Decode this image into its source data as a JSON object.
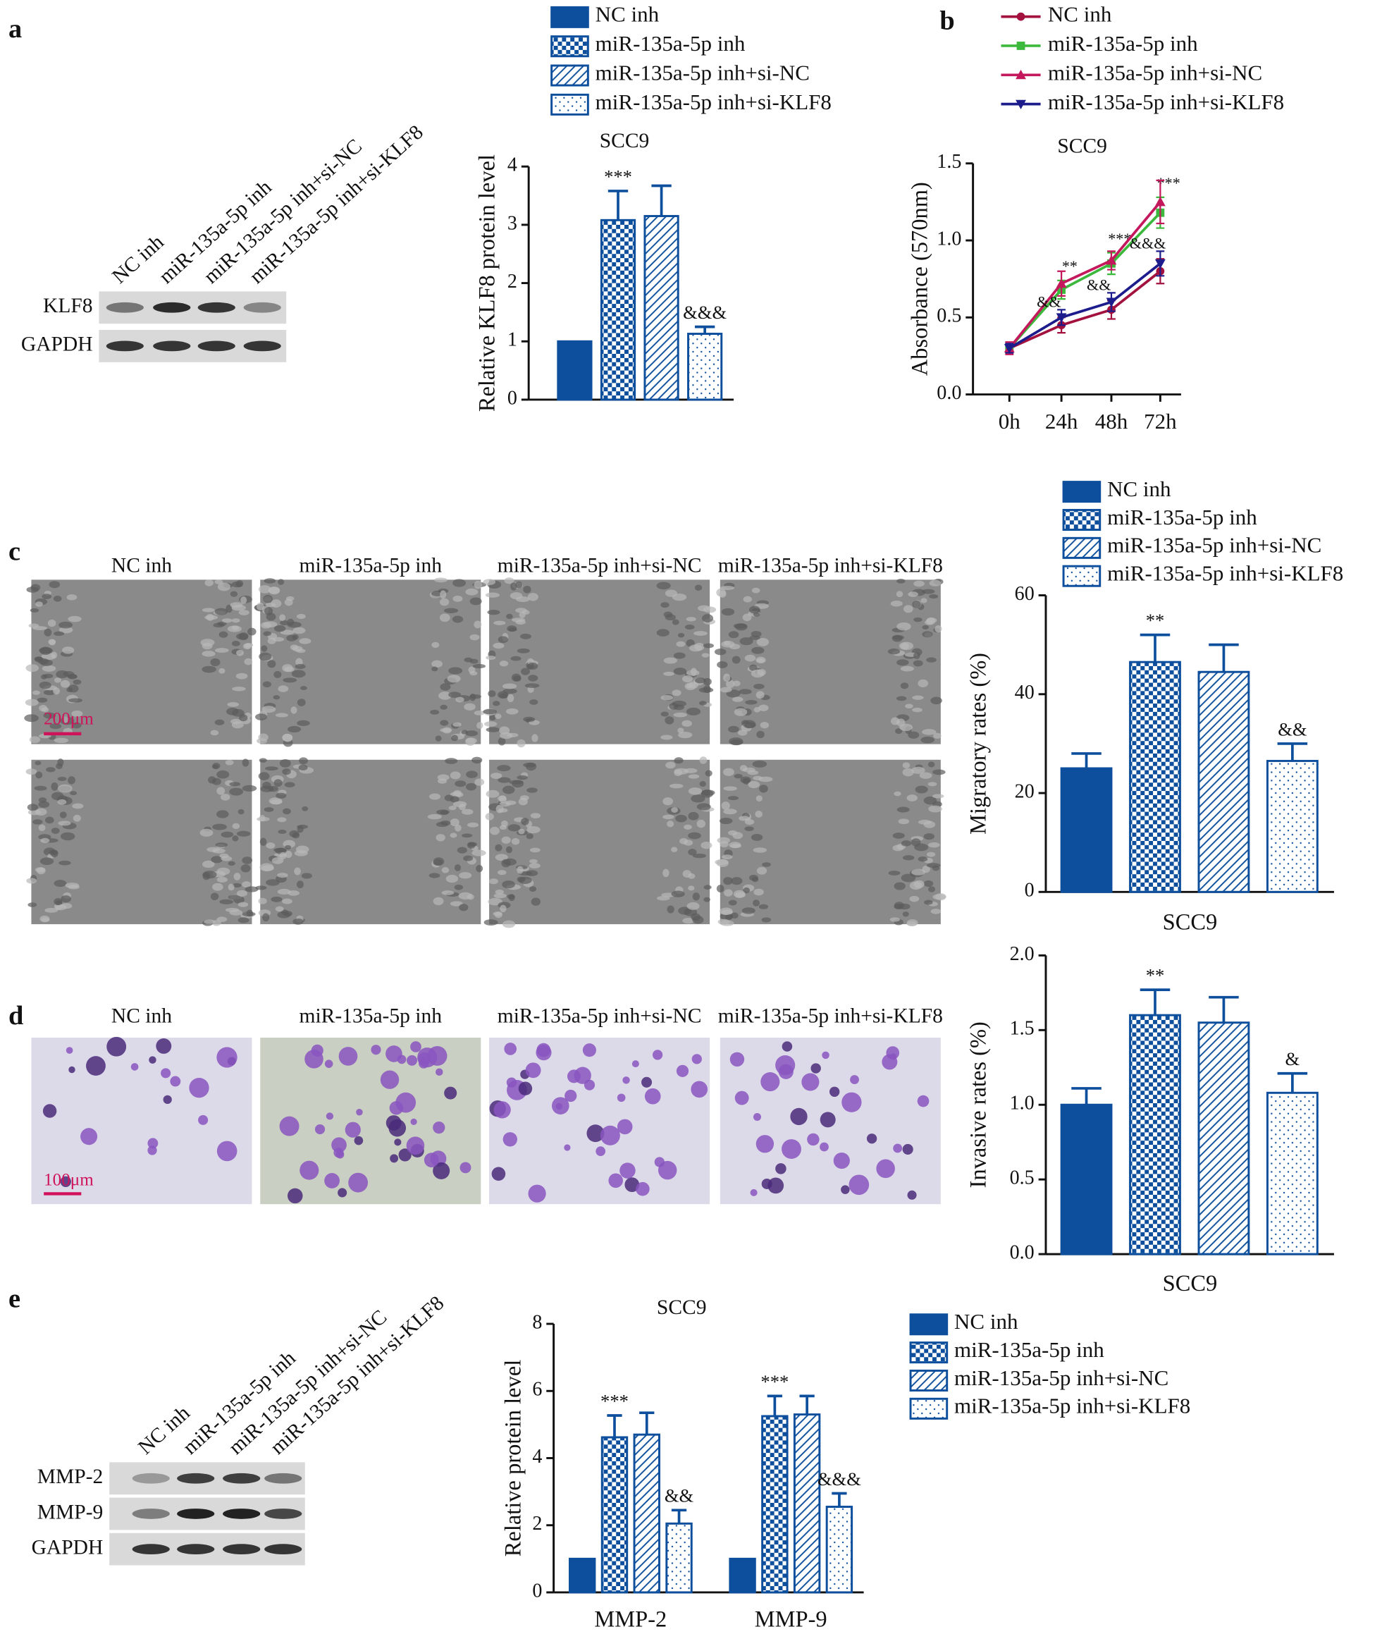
{
  "panel_labels": [
    "a",
    "b",
    "c",
    "d",
    "e"
  ],
  "blot_a": {
    "lanes": [
      "NC inh",
      "miR-135a-5p inh",
      "miR-135a-5p inh+si-NC",
      "miR-135a-5p inh+si-KLF8"
    ],
    "rows": [
      "KLF8",
      "GAPDH"
    ]
  },
  "wound_images": {
    "columns": [
      "NC inh",
      "miR-135a-5p inh",
      "miR-135a-5p inh+si-NC",
      "miR-135a-5p inh+si-KLF8"
    ],
    "scale_bar": "200μm"
  },
  "transwell_images": {
    "columns": [
      "NC inh",
      "miR-135a-5p inh",
      "miR-135a-5p inh+si-NC",
      "miR-135a-5p inh+si-KLF8"
    ],
    "scale_bar": "100μm"
  },
  "blot_e": {
    "lanes": [
      "NC inh",
      "miR-135a-5p inh",
      "miR-135a-5p inh+si-NC",
      "miR-135a-5p inh+si-KLF8"
    ],
    "rows": [
      "MMP-2",
      "MMP-9",
      "GAPDH"
    ]
  },
  "chart_data": [
    {
      "type": "bar",
      "title": "SCC9",
      "y_label": "Relative KLF8 protein level",
      "categories": [
        null
      ],
      "ylim": [
        0,
        4
      ],
      "yticks": [
        0,
        1,
        2,
        3,
        4
      ],
      "legend": true,
      "series": [
        {
          "name": "NC inh",
          "color": "#0d4f9c",
          "pattern": "solid",
          "values": [
            1
          ],
          "errors": [
            null
          ],
          "annotations": [
            null
          ]
        },
        {
          "name": "miR-135a-5p inh",
          "color": "#0d4f9c",
          "pattern": "checker",
          "values": [
            3.08
          ],
          "errors": [
            0.5
          ],
          "annotations": [
            "***"
          ]
        },
        {
          "name": "miR-135a-5p inh+si-NC",
          "color": "#0d4f9c",
          "pattern": "hatch",
          "values": [
            3.15
          ],
          "errors": [
            0.52
          ],
          "annotations": [
            null
          ]
        },
        {
          "name": "miR-135a-5p inh+si-KLF8",
          "color": "#0d4f9c",
          "pattern": "dots",
          "values": [
            1.13
          ],
          "errors": [
            0.12
          ],
          "annotations": [
            "&&&"
          ]
        }
      ]
    },
    {
      "type": "line",
      "title": "SCC9",
      "y_label": "Absorbance (570nm)",
      "categories": [
        "0h",
        "24h",
        "48h",
        "72h"
      ],
      "ylim": [
        0,
        1.5
      ],
      "yticks": [
        {
          "value": 0,
          "label": "0.0"
        },
        0.5,
        {
          "value": 1,
          "label": "1.0"
        },
        1.5
      ],
      "legend": true,
      "series": [
        {
          "name": "NC inh",
          "color": "#a3123e",
          "marker": "circle",
          "values": [
            0.3,
            0.45,
            0.55,
            0.8
          ],
          "errors": [
            0.03,
            0.05,
            0.06,
            0.08
          ],
          "annotations": [
            null,
            null,
            null,
            null
          ]
        },
        {
          "name": "miR-135a-5p inh",
          "color": "#3cb83c",
          "marker": "square",
          "values": [
            0.3,
            0.68,
            0.85,
            1.18
          ],
          "errors": [
            0.03,
            0.06,
            0.07,
            0.1
          ],
          "annotations": [
            null,
            "**",
            "***",
            "***"
          ]
        },
        {
          "name": "miR-135a-5p inh+si-NC",
          "color": "#c4185c",
          "marker": "triangle-up",
          "values": [
            0.3,
            0.72,
            0.87,
            1.25
          ],
          "errors": [
            0.04,
            0.08,
            0.06,
            0.14
          ],
          "annotations": [
            null,
            null,
            null,
            null
          ]
        },
        {
          "name": "miR-135a-5p inh+si-KLF8",
          "color": "#1c1c8c",
          "marker": "triangle-down",
          "values": [
            0.3,
            0.5,
            0.6,
            0.85
          ],
          "errors": [
            0.03,
            0.05,
            0.06,
            0.08
          ],
          "annotations": [
            null,
            "&&",
            "&&",
            "&&&"
          ]
        }
      ]
    },
    {
      "type": "bar",
      "y_label": "Migratory rates (%)",
      "x_label": "SCC9",
      "categories": [
        null
      ],
      "ylim": [
        0,
        60
      ],
      "yticks": [
        0,
        20,
        40,
        60
      ],
      "legend": true,
      "series": [
        {
          "name": "NC inh",
          "color": "#0d4f9c",
          "pattern": "solid",
          "values": [
            25
          ],
          "errors": [
            3
          ],
          "annotations": [
            null
          ]
        },
        {
          "name": "miR-135a-5p inh",
          "color": "#0d4f9c",
          "pattern": "checker",
          "values": [
            46.5
          ],
          "errors": [
            5.5
          ],
          "annotations": [
            "**"
          ]
        },
        {
          "name": "miR-135a-5p inh+si-NC",
          "color": "#0d4f9c",
          "pattern": "hatch",
          "values": [
            44.5
          ],
          "errors": [
            5.5
          ],
          "annotations": [
            null
          ]
        },
        {
          "name": "miR-135a-5p inh+si-KLF8",
          "color": "#0d4f9c",
          "pattern": "dots",
          "values": [
            26.5
          ],
          "errors": [
            3.5
          ],
          "annotations": [
            "&&"
          ]
        }
      ]
    },
    {
      "type": "bar",
      "y_label": "Invasive rates (%)",
      "x_label": "SCC9",
      "categories": [
        null
      ],
      "ylim": [
        0,
        2
      ],
      "yticks": [
        {
          "value": 0,
          "label": "0.0"
        },
        0.5,
        {
          "value": 1,
          "label": "1.0"
        },
        1.5,
        {
          "value": 2,
          "label": "2.0"
        }
      ],
      "legend": false,
      "series": [
        {
          "color": "#0d4f9c",
          "pattern": "solid",
          "values": [
            1.0
          ],
          "errors": [
            0.11
          ],
          "annotations": [
            null
          ]
        },
        {
          "color": "#0d4f9c",
          "pattern": "checker",
          "values": [
            1.6
          ],
          "errors": [
            0.17
          ],
          "annotations": [
            "**"
          ]
        },
        {
          "color": "#0d4f9c",
          "pattern": "hatch",
          "values": [
            1.55
          ],
          "errors": [
            0.17
          ],
          "annotations": [
            null
          ]
        },
        {
          "color": "#0d4f9c",
          "pattern": "dots",
          "values": [
            1.08
          ],
          "errors": [
            0.13
          ],
          "annotations": [
            "&"
          ]
        }
      ]
    },
    {
      "type": "bar",
      "title": "SCC9",
      "y_label": "Relative protein level",
      "categories": [
        "MMP-2",
        "MMP-9"
      ],
      "ylim": [
        0,
        8
      ],
      "yticks": [
        0,
        2,
        4,
        6,
        8
      ],
      "legend": true,
      "series": [
        {
          "name": "NC inh",
          "color": "#0d4f9c",
          "pattern": "solid",
          "values": [
            1,
            1
          ],
          "errors": [
            null,
            null
          ],
          "annotations": [
            null,
            null
          ]
        },
        {
          "name": "miR-135a-5p inh",
          "color": "#0d4f9c",
          "pattern": "checker",
          "values": [
            4.62,
            5.25
          ],
          "errors": [
            0.65,
            0.6
          ],
          "annotations": [
            "***",
            "***"
          ]
        },
        {
          "name": "miR-135a-5p inh+si-NC",
          "color": "#0d4f9c",
          "pattern": "hatch",
          "values": [
            4.7,
            5.3
          ],
          "errors": [
            0.65,
            0.55
          ],
          "annotations": [
            null,
            null
          ]
        },
        {
          "name": "miR-135a-5p inh+si-KLF8",
          "color": "#0d4f9c",
          "pattern": "dots",
          "values": [
            2.05,
            2.55
          ],
          "errors": [
            0.4,
            0.4
          ],
          "annotations": [
            "&&",
            "&&&"
          ]
        }
      ]
    }
  ]
}
